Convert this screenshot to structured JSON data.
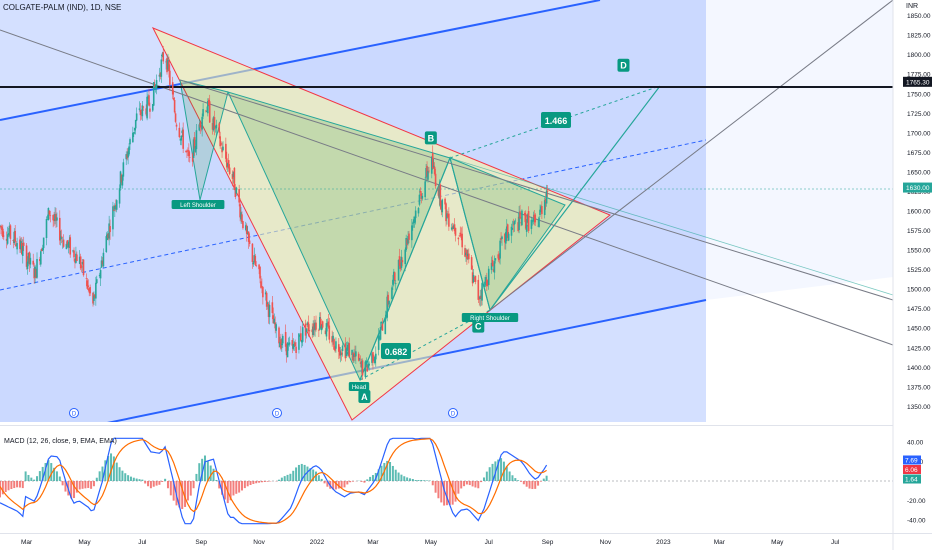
{
  "header": {
    "symbol": "COLGATE-PALM (IND), 1D, NSE"
  },
  "price_axis": {
    "currency": "INR",
    "ticks": [
      "1850.00",
      "1825.00",
      "1800.00",
      "1775.00",
      "1750.00",
      "1725.00",
      "1700.00",
      "1675.00",
      "1650.00",
      "1625.00",
      "1600.00",
      "1575.00",
      "1550.00",
      "1525.00",
      "1500.00",
      "1475.00",
      "1450.00",
      "1425.00",
      "1400.00",
      "1375.00",
      "1350.00"
    ],
    "price_tags": [
      {
        "label": "1765.30",
        "value": 1765.3,
        "bg": "#131722"
      },
      {
        "label": "1630.00",
        "value": 1630.0,
        "bg": "#26a69a"
      }
    ]
  },
  "time_axis": {
    "labels": [
      "Mar",
      "May",
      "Jul",
      "Sep",
      "Nov",
      "2022",
      "Mar",
      "May",
      "Jul",
      "Sep",
      "Nov",
      "2023",
      "Mar",
      "May",
      "Jul"
    ]
  },
  "pattern": {
    "points": [
      {
        "name": "A",
        "label": "A",
        "x": "2022-02-20",
        "y": 1385
      },
      {
        "name": "B",
        "label": "B",
        "x": "2022-05-01",
        "y": 1675
      },
      {
        "name": "C",
        "label": "C",
        "x": "2022-06-20",
        "y": 1475
      },
      {
        "name": "D",
        "label": "D",
        "x": "2022-11-20",
        "y": 1768
      }
    ],
    "ratios": [
      {
        "label": "0.682"
      },
      {
        "label": "1.466"
      }
    ],
    "notes": [
      {
        "label": "Left Shoulder"
      },
      {
        "label": "Head"
      },
      {
        "label": "Right Shoulder"
      }
    ]
  },
  "dividend_markers": [
    "D",
    "D",
    "D"
  ],
  "macd": {
    "title": "MACD (12, 26, close, 9, EMA, EMA)",
    "ticks": [
      "40.00",
      "20.00",
      "-20.00",
      "-40.00"
    ],
    "value_tags": [
      {
        "label": "7.69",
        "bg": "#2962ff"
      },
      {
        "label": "6.06",
        "bg": "#f23645"
      },
      {
        "label": "1.64",
        "bg": "#26a69a"
      }
    ]
  },
  "colors": {
    "up": "#26a69a",
    "down": "#ef5350",
    "channel": "#2962ff",
    "triangle": "#f23645",
    "macd": "#2962ff",
    "signal": "#ff6d00"
  },
  "chart_data": {
    "type": "candlestick",
    "title": "COLGATE-PALM (IND), 1D, NSE",
    "x_range": [
      "2021-02-01",
      "2023-08-31"
    ],
    "y_range": [
      1330,
      1870
    ],
    "ohlc_period_start": "2021-02-01",
    "ohlc_period_end": "2022-09-01",
    "close_path": [
      [
        "2021-02-01",
        1580
      ],
      [
        "2021-02-20",
        1560
      ],
      [
        "2021-03-10",
        1520
      ],
      [
        "2021-03-25",
        1600
      ],
      [
        "2021-04-10",
        1560
      ],
      [
        "2021-04-25",
        1540
      ],
      [
        "2021-05-10",
        1480
      ],
      [
        "2021-05-25",
        1570
      ],
      [
        "2021-06-10",
        1650
      ],
      [
        "2021-06-25",
        1720
      ],
      [
        "2021-07-10",
        1740
      ],
      [
        "2021-07-25",
        1805
      ],
      [
        "2021-08-05",
        1720
      ],
      [
        "2021-08-20",
        1660
      ],
      [
        "2021-09-05",
        1740
      ],
      [
        "2021-09-20",
        1690
      ],
      [
        "2021-10-05",
        1640
      ],
      [
        "2021-10-20",
        1560
      ],
      [
        "2021-11-05",
        1500
      ],
      [
        "2021-11-20",
        1440
      ],
      [
        "2021-12-05",
        1420
      ],
      [
        "2021-12-20",
        1450
      ],
      [
        "2022-01-05",
        1460
      ],
      [
        "2022-01-20",
        1430
      ],
      [
        "2022-02-05",
        1420
      ],
      [
        "2022-02-20",
        1395
      ],
      [
        "2022-03-05",
        1425
      ],
      [
        "2022-03-20",
        1500
      ],
      [
        "2022-04-05",
        1560
      ],
      [
        "2022-04-20",
        1620
      ],
      [
        "2022-05-01",
        1665
      ],
      [
        "2022-05-15",
        1600
      ],
      [
        "2022-06-01",
        1570
      ],
      [
        "2022-06-20",
        1490
      ],
      [
        "2022-07-05",
        1530
      ],
      [
        "2022-07-20",
        1570
      ],
      [
        "2022-08-05",
        1590
      ],
      [
        "2022-08-20",
        1580
      ],
      [
        "2022-09-01",
        1630
      ]
    ]
  }
}
